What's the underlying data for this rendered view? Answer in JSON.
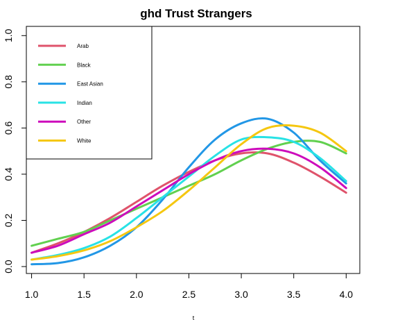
{
  "chart_data": {
    "type": "line",
    "title": "ghd Trust Strangers",
    "xlabel": "t",
    "ylabel": "",
    "xlim": [
      0.95,
      4.13
    ],
    "ylim": [
      -0.03,
      1.04
    ],
    "x_ticks": [
      "1.0",
      "1.5",
      "2.0",
      "2.5",
      "3.0",
      "3.5",
      "4.0"
    ],
    "y_ticks": [
      "0.0",
      "0.2",
      "0.4",
      "0.6",
      "0.8",
      "1.0"
    ],
    "grid": false,
    "legend_position": "top-left",
    "x": [
      1.0,
      1.25,
      1.5,
      1.75,
      2.0,
      2.25,
      2.5,
      2.75,
      3.0,
      3.25,
      3.5,
      3.75,
      4.0
    ],
    "series": [
      {
        "name": "Arab",
        "color": "#df536b",
        "values": [
          0.06,
          0.1,
          0.15,
          0.21,
          0.28,
          0.35,
          0.41,
          0.46,
          0.49,
          0.49,
          0.45,
          0.39,
          0.32
        ]
      },
      {
        "name": "Black",
        "color": "#61d04f",
        "values": [
          0.09,
          0.12,
          0.15,
          0.2,
          0.25,
          0.3,
          0.35,
          0.4,
          0.46,
          0.51,
          0.54,
          0.54,
          0.49
        ]
      },
      {
        "name": "East Asian",
        "color": "#2297e6",
        "values": [
          0.01,
          0.015,
          0.04,
          0.09,
          0.17,
          0.29,
          0.43,
          0.55,
          0.62,
          0.64,
          0.58,
          0.46,
          0.36
        ]
      },
      {
        "name": "Indian",
        "color": "#28e2e5",
        "values": [
          0.03,
          0.05,
          0.08,
          0.13,
          0.21,
          0.3,
          0.39,
          0.48,
          0.55,
          0.56,
          0.54,
          0.47,
          0.37
        ]
      },
      {
        "name": "Other",
        "color": "#cd0bbc",
        "values": [
          0.06,
          0.09,
          0.14,
          0.19,
          0.26,
          0.33,
          0.4,
          0.46,
          0.5,
          0.51,
          0.49,
          0.43,
          0.34
        ]
      },
      {
        "name": "White",
        "color": "#f5c710",
        "values": [
          0.03,
          0.045,
          0.07,
          0.11,
          0.17,
          0.24,
          0.33,
          0.43,
          0.53,
          0.6,
          0.61,
          0.58,
          0.5
        ]
      }
    ]
  }
}
